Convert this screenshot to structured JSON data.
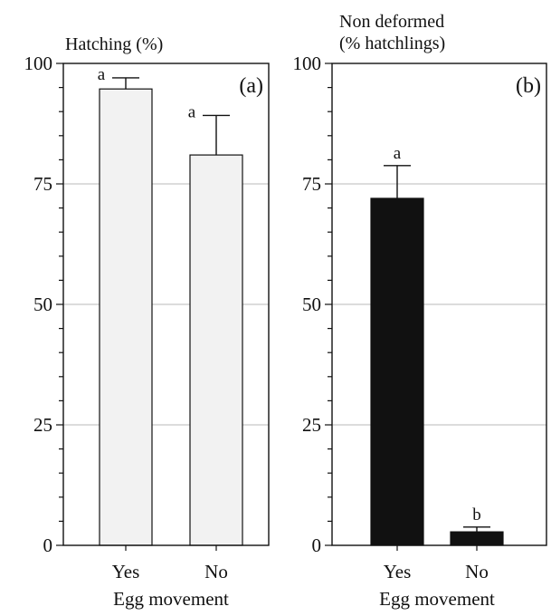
{
  "chart_data": [
    {
      "type": "bar",
      "panel_label": "(a)",
      "title": "",
      "ylabel_lines": [
        "Hatching (%)"
      ],
      "xlabel": "Egg movement",
      "categories": [
        "Yes",
        "No"
      ],
      "values": [
        94.7,
        81.0
      ],
      "error_upper": [
        97.0,
        89.2
      ],
      "significance": [
        "a",
        "a"
      ],
      "ylim": [
        0,
        100
      ],
      "yticks": [
        0,
        25,
        50,
        75,
        100
      ],
      "grid": true,
      "bar_color": "#f2f2f2"
    },
    {
      "type": "bar",
      "panel_label": "(b)",
      "title": "",
      "ylabel_lines": [
        "Non deformed",
        "(% hatchlings)"
      ],
      "xlabel": "Egg movement",
      "categories": [
        "Yes",
        "No"
      ],
      "values": [
        72.0,
        2.8
      ],
      "error_upper": [
        78.8,
        3.8
      ],
      "significance": [
        "a",
        "b"
      ],
      "ylim": [
        0,
        100
      ],
      "yticks": [
        0,
        25,
        50,
        75,
        100
      ],
      "grid": true,
      "bar_color": "#111111"
    }
  ]
}
